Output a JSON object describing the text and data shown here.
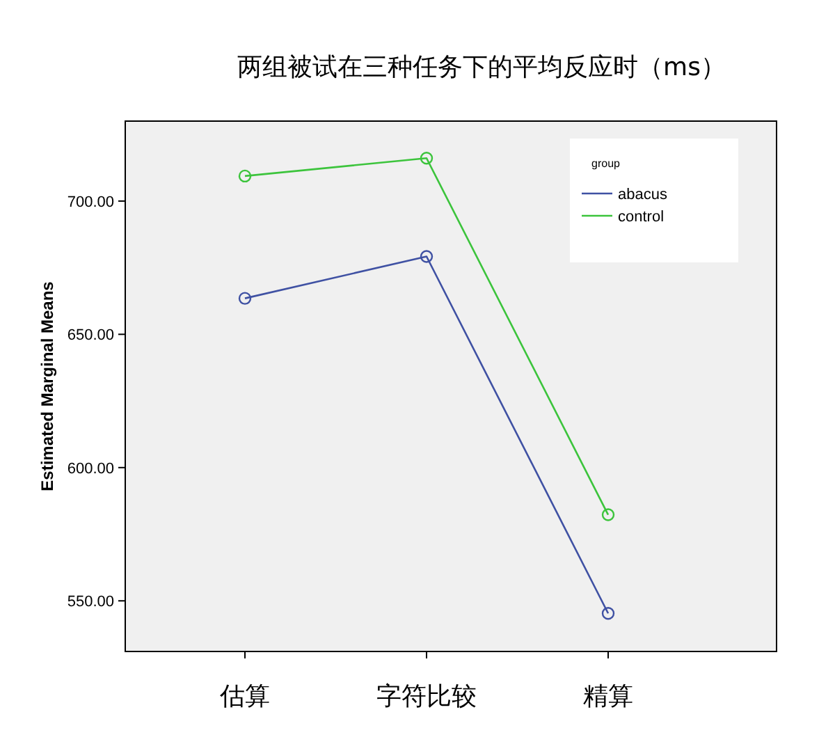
{
  "chart_data": {
    "type": "line",
    "title": "两组被试在三种任务下的平均反应时（ms）",
    "ylabel": "Estimated Marginal Means",
    "categories": [
      "估算",
      "字符比较",
      "精算"
    ],
    "series": [
      {
        "name": "abacus",
        "color": "#3f51a3",
        "values": [
          663.5,
          679.2,
          545.3
        ]
      },
      {
        "name": "control",
        "color": "#3cc43c",
        "values": [
          709.4,
          716.1,
          582.3
        ]
      }
    ],
    "ylim": [
      531,
      730
    ],
    "yticks": [
      {
        "value": 550,
        "label": "550.00"
      },
      {
        "value": 600,
        "label": "600.00"
      },
      {
        "value": 650,
        "label": "650.00"
      },
      {
        "value": 700,
        "label": "700.00"
      }
    ],
    "legend": "top right",
    "legend_title": "group",
    "marker": "circle",
    "grid": false
  }
}
